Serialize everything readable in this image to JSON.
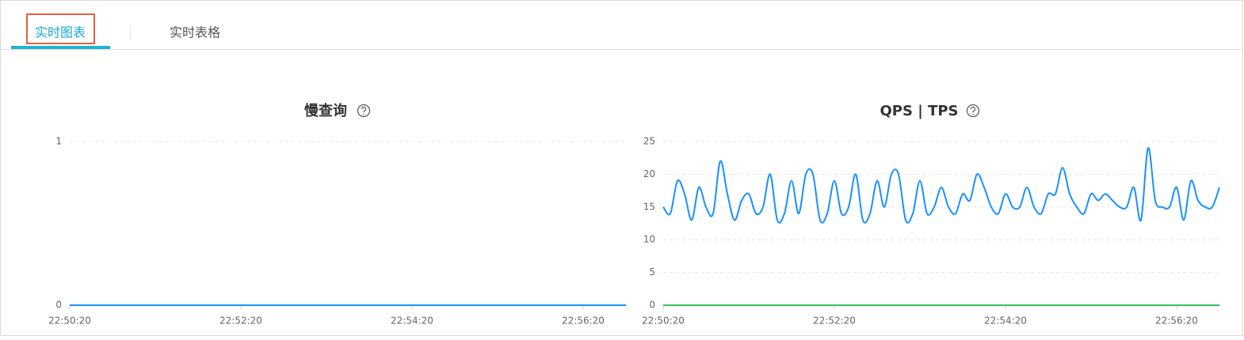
{
  "tabs": [
    "实时图表",
    "实时表格"
  ],
  "chart_data": [
    {
      "type": "line",
      "title": "慢查询",
      "x": [
        "22:50:20",
        "22:56:50"
      ],
      "xlim": [
        "22:50:20",
        "22:56:50"
      ],
      "xticks": [
        "22:50:20",
        "22:52:20",
        "22:54:20",
        "22:56:20"
      ],
      "ylim": [
        0,
        1
      ],
      "yticks": [
        0,
        1
      ],
      "grid": true,
      "series": [
        {
          "color": "#1890ff",
          "values": [
            0,
            0
          ]
        }
      ]
    },
    {
      "type": "line",
      "title": "QPS | TPS",
      "x": [
        "22:50:20",
        "22:50:25",
        "22:50:30",
        "22:50:35",
        "22:50:40",
        "22:50:45",
        "22:50:50",
        "22:50:55",
        "22:51:00",
        "22:51:05",
        "22:51:10",
        "22:51:15",
        "22:51:20",
        "22:51:25",
        "22:51:30",
        "22:51:35",
        "22:51:40",
        "22:51:45",
        "22:51:50",
        "22:51:55",
        "22:52:00",
        "22:52:05",
        "22:52:10",
        "22:52:15",
        "22:52:20",
        "22:52:25",
        "22:52:30",
        "22:52:35",
        "22:52:40",
        "22:52:45",
        "22:52:50",
        "22:52:55",
        "22:53:00",
        "22:53:05",
        "22:53:10",
        "22:53:15",
        "22:53:20",
        "22:53:25",
        "22:53:30",
        "22:53:35",
        "22:53:40",
        "22:53:45",
        "22:53:50",
        "22:53:55",
        "22:54:00",
        "22:54:05",
        "22:54:10",
        "22:54:15",
        "22:54:20",
        "22:54:25",
        "22:54:30",
        "22:54:35",
        "22:54:40",
        "22:54:45",
        "22:54:50",
        "22:54:55",
        "22:55:00",
        "22:55:05",
        "22:55:10",
        "22:55:15",
        "22:55:20",
        "22:55:25",
        "22:55:30",
        "22:55:35",
        "22:55:40",
        "22:55:45",
        "22:55:50",
        "22:55:55",
        "22:56:00",
        "22:56:05",
        "22:56:10",
        "22:56:15",
        "22:56:20",
        "22:56:25",
        "22:56:30",
        "22:56:35",
        "22:56:40",
        "22:56:45",
        "22:56:50"
      ],
      "xlim": [
        "22:50:20",
        "22:56:50"
      ],
      "xticks": [
        "22:50:20",
        "22:52:20",
        "22:54:20",
        "22:56:20"
      ],
      "ylim": [
        0,
        25
      ],
      "yticks": [
        0,
        5,
        10,
        15,
        20,
        25
      ],
      "grid": true,
      "series": [
        {
          "color": "#1890ff",
          "values": [
            15,
            14,
            19,
            17,
            13,
            18,
            15,
            14,
            22,
            17,
            13,
            16,
            17,
            14,
            15,
            20,
            13,
            14,
            19,
            14,
            20,
            20,
            13,
            14,
            19,
            14,
            15,
            20,
            13,
            14,
            19,
            15,
            20,
            20,
            13,
            14,
            19,
            14,
            15,
            18,
            15,
            14,
            17,
            16,
            20,
            18,
            15,
            14,
            17,
            15,
            15,
            18,
            15,
            14,
            17,
            17,
            21,
            17,
            15,
            14,
            17,
            16,
            17,
            16,
            15,
            15,
            18,
            13,
            24,
            16,
            15,
            15,
            18,
            13,
            19,
            16,
            15,
            15,
            18
          ]
        },
        {
          "color": "#2fc25b",
          "values": [
            0,
            0,
            0,
            0,
            0,
            0,
            0,
            0,
            0,
            0,
            0,
            0,
            0,
            0,
            0,
            0,
            0,
            0,
            0,
            0,
            0,
            0,
            0,
            0,
            0,
            0,
            0,
            0,
            0,
            0,
            0,
            0,
            0,
            0,
            0,
            0,
            0,
            0,
            0,
            0,
            0,
            0,
            0,
            0,
            0,
            0,
            0,
            0,
            0,
            0,
            0,
            0,
            0,
            0,
            0,
            0,
            0,
            0,
            0,
            0,
            0,
            0,
            0,
            0,
            0,
            0,
            0,
            0,
            0,
            0,
            0,
            0,
            0,
            0,
            0,
            0,
            0,
            0,
            0
          ]
        }
      ]
    }
  ]
}
